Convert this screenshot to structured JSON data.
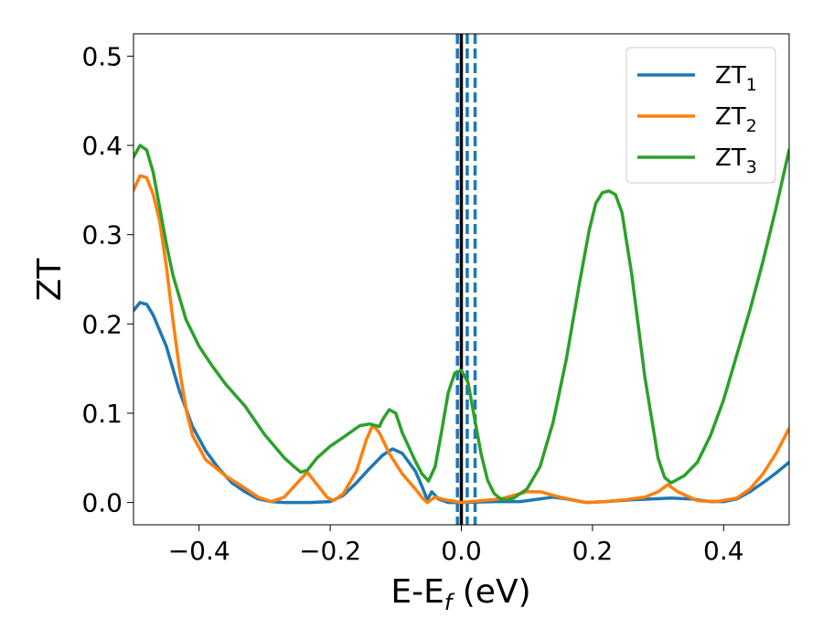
{
  "chart_data": {
    "type": "line",
    "xlabel": "E-E",
    "xlabel_sub": "f",
    "xlabel_suffix": " (eV)",
    "ylabel": "ZT",
    "xlim": [
      -0.5,
      0.5
    ],
    "ylim": [
      -0.025,
      0.525
    ],
    "xticks": [
      -0.4,
      -0.2,
      0.0,
      0.2,
      0.4
    ],
    "xtick_labels": [
      "−0.4",
      "−0.2",
      "0.0",
      "0.2",
      "0.4"
    ],
    "yticks": [
      0.0,
      0.1,
      0.2,
      0.3,
      0.4,
      0.5
    ],
    "ytick_labels": [
      "0.0",
      "0.1",
      "0.2",
      "0.3",
      "0.4",
      "0.5"
    ],
    "legend_position": "top-right",
    "grid": false,
    "series": [
      {
        "name": "ZT",
        "name_sub": "1",
        "color": "#1f77b4",
        "points": [
          [
            -0.5,
            0.215
          ],
          [
            -0.49,
            0.224
          ],
          [
            -0.48,
            0.222
          ],
          [
            -0.47,
            0.21
          ],
          [
            -0.45,
            0.175
          ],
          [
            -0.43,
            0.125
          ],
          [
            -0.41,
            0.085
          ],
          [
            -0.39,
            0.058
          ],
          [
            -0.37,
            0.038
          ],
          [
            -0.35,
            0.022
          ],
          [
            -0.33,
            0.012
          ],
          [
            -0.31,
            0.004
          ],
          [
            -0.29,
            0.001
          ],
          [
            -0.27,
            0.0
          ],
          [
            -0.23,
            0.0
          ],
          [
            -0.2,
            0.001
          ],
          [
            -0.18,
            0.008
          ],
          [
            -0.16,
            0.022
          ],
          [
            -0.14,
            0.038
          ],
          [
            -0.12,
            0.053
          ],
          [
            -0.105,
            0.06
          ],
          [
            -0.09,
            0.055
          ],
          [
            -0.07,
            0.035
          ],
          [
            -0.06,
            0.018
          ],
          [
            -0.052,
            0.003
          ],
          [
            -0.045,
            0.012
          ],
          [
            -0.035,
            0.004
          ],
          [
            -0.02,
            0.0
          ],
          [
            0.0,
            0.0
          ],
          [
            0.05,
            0.001
          ],
          [
            0.09,
            0.001
          ],
          [
            0.12,
            0.004
          ],
          [
            0.14,
            0.006
          ],
          [
            0.16,
            0.004
          ],
          [
            0.19,
            0.0
          ],
          [
            0.22,
            0.001
          ],
          [
            0.26,
            0.003
          ],
          [
            0.29,
            0.004
          ],
          [
            0.32,
            0.005
          ],
          [
            0.35,
            0.004
          ],
          [
            0.38,
            0.001
          ],
          [
            0.4,
            0.001
          ],
          [
            0.42,
            0.004
          ],
          [
            0.44,
            0.012
          ],
          [
            0.46,
            0.022
          ],
          [
            0.48,
            0.033
          ],
          [
            0.5,
            0.045
          ]
        ]
      },
      {
        "name": "ZT",
        "name_sub": "2",
        "color": "#ff7f0e",
        "points": [
          [
            -0.5,
            0.35
          ],
          [
            -0.49,
            0.366
          ],
          [
            -0.48,
            0.364
          ],
          [
            -0.47,
            0.345
          ],
          [
            -0.46,
            0.315
          ],
          [
            -0.45,
            0.265
          ],
          [
            -0.44,
            0.205
          ],
          [
            -0.43,
            0.15
          ],
          [
            -0.42,
            0.105
          ],
          [
            -0.41,
            0.075
          ],
          [
            -0.39,
            0.048
          ],
          [
            -0.36,
            0.03
          ],
          [
            -0.33,
            0.016
          ],
          [
            -0.31,
            0.006
          ],
          [
            -0.29,
            0.001
          ],
          [
            -0.27,
            0.006
          ],
          [
            -0.25,
            0.022
          ],
          [
            -0.235,
            0.034
          ],
          [
            -0.22,
            0.02
          ],
          [
            -0.205,
            0.006
          ],
          [
            -0.195,
            0.002
          ],
          [
            -0.18,
            0.01
          ],
          [
            -0.16,
            0.035
          ],
          [
            -0.145,
            0.07
          ],
          [
            -0.135,
            0.087
          ],
          [
            -0.125,
            0.078
          ],
          [
            -0.11,
            0.055
          ],
          [
            -0.09,
            0.032
          ],
          [
            -0.07,
            0.015
          ],
          [
            -0.058,
            0.004
          ],
          [
            -0.052,
            0.0
          ],
          [
            -0.04,
            0.006
          ],
          [
            -0.025,
            0.003
          ],
          [
            0.0,
            0.0
          ],
          [
            0.06,
            0.004
          ],
          [
            0.1,
            0.012
          ],
          [
            0.12,
            0.012
          ],
          [
            0.15,
            0.006
          ],
          [
            0.19,
            0.0
          ],
          [
            0.22,
            0.001
          ],
          [
            0.25,
            0.003
          ],
          [
            0.28,
            0.006
          ],
          [
            0.3,
            0.012
          ],
          [
            0.315,
            0.02
          ],
          [
            0.33,
            0.012
          ],
          [
            0.36,
            0.002
          ],
          [
            0.39,
            0.001
          ],
          [
            0.42,
            0.005
          ],
          [
            0.44,
            0.015
          ],
          [
            0.46,
            0.032
          ],
          [
            0.48,
            0.055
          ],
          [
            0.5,
            0.083
          ]
        ]
      },
      {
        "name": "ZT",
        "name_sub": "3",
        "color": "#2ca02c",
        "points": [
          [
            -0.5,
            0.387
          ],
          [
            -0.49,
            0.4
          ],
          [
            -0.48,
            0.395
          ],
          [
            -0.47,
            0.37
          ],
          [
            -0.46,
            0.33
          ],
          [
            -0.45,
            0.29
          ],
          [
            -0.44,
            0.255
          ],
          [
            -0.42,
            0.205
          ],
          [
            -0.4,
            0.175
          ],
          [
            -0.38,
            0.153
          ],
          [
            -0.36,
            0.133
          ],
          [
            -0.33,
            0.108
          ],
          [
            -0.3,
            0.076
          ],
          [
            -0.27,
            0.05
          ],
          [
            -0.255,
            0.04
          ],
          [
            -0.245,
            0.034
          ],
          [
            -0.235,
            0.036
          ],
          [
            -0.22,
            0.05
          ],
          [
            -0.2,
            0.063
          ],
          [
            -0.18,
            0.073
          ],
          [
            -0.155,
            0.086
          ],
          [
            -0.14,
            0.088
          ],
          [
            -0.125,
            0.085
          ],
          [
            -0.12,
            0.093
          ],
          [
            -0.11,
            0.104
          ],
          [
            -0.1,
            0.1
          ],
          [
            -0.09,
            0.078
          ],
          [
            -0.08,
            0.062
          ],
          [
            -0.07,
            0.046
          ],
          [
            -0.06,
            0.032
          ],
          [
            -0.05,
            0.024
          ],
          [
            -0.04,
            0.04
          ],
          [
            -0.03,
            0.08
          ],
          [
            -0.02,
            0.123
          ],
          [
            -0.01,
            0.145
          ],
          [
            0.0,
            0.148
          ],
          [
            0.01,
            0.135
          ],
          [
            0.02,
            0.095
          ],
          [
            0.03,
            0.055
          ],
          [
            0.04,
            0.025
          ],
          [
            0.05,
            0.01
          ],
          [
            0.06,
            0.004
          ],
          [
            0.07,
            0.003
          ],
          [
            0.08,
            0.005
          ],
          [
            0.1,
            0.015
          ],
          [
            0.12,
            0.04
          ],
          [
            0.14,
            0.09
          ],
          [
            0.16,
            0.16
          ],
          [
            0.18,
            0.245
          ],
          [
            0.195,
            0.305
          ],
          [
            0.205,
            0.335
          ],
          [
            0.215,
            0.347
          ],
          [
            0.225,
            0.349
          ],
          [
            0.235,
            0.345
          ],
          [
            0.245,
            0.325
          ],
          [
            0.26,
            0.255
          ],
          [
            0.28,
            0.14
          ],
          [
            0.3,
            0.05
          ],
          [
            0.31,
            0.028
          ],
          [
            0.32,
            0.022
          ],
          [
            0.34,
            0.03
          ],
          [
            0.36,
            0.045
          ],
          [
            0.38,
            0.075
          ],
          [
            0.4,
            0.115
          ],
          [
            0.42,
            0.165
          ],
          [
            0.44,
            0.215
          ],
          [
            0.46,
            0.27
          ],
          [
            0.48,
            0.33
          ],
          [
            0.5,
            0.395
          ]
        ]
      }
    ],
    "vlines": [
      {
        "x": 0.0,
        "color": "#000000",
        "style": "solid"
      },
      {
        "x": -0.006,
        "color": "#1f77b4",
        "style": "dashed"
      },
      {
        "x": 0.009,
        "color": "#1f77b4",
        "style": "dashed"
      },
      {
        "x": 0.021,
        "color": "#1f77b4",
        "style": "dashed"
      }
    ]
  }
}
